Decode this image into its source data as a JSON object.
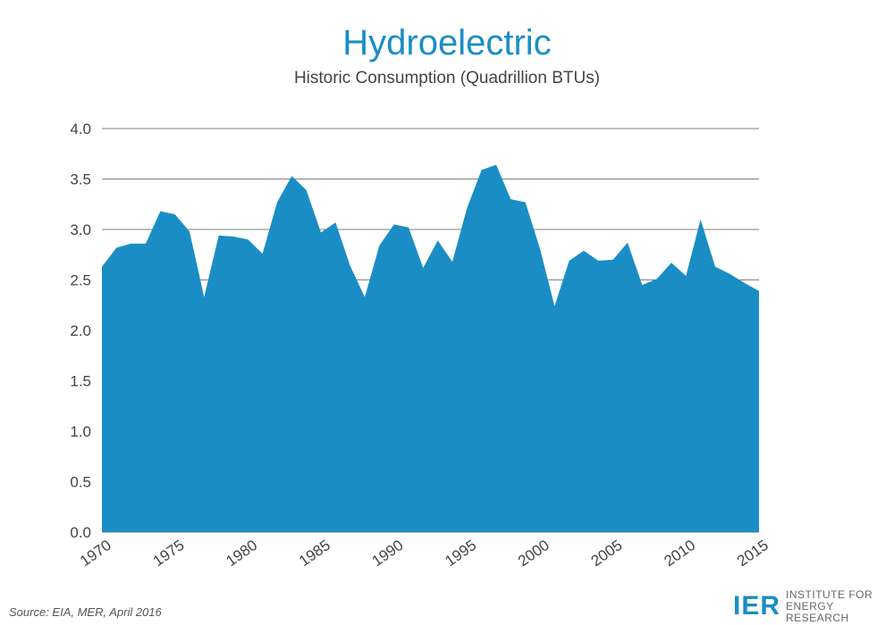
{
  "header": {
    "title": "Hydroelectric",
    "subtitle": "Historic Consumption (Quadrillion BTUs)"
  },
  "footer": {
    "source": "Source: EIA, MER, April 2016",
    "logo_mark": "IER",
    "logo_line1": "INSTITUTE FOR",
    "logo_line2": "ENERGY RESEARCH"
  },
  "colors": {
    "fill": "#1a8ec4",
    "grid": "#7f7f7f",
    "title": "#1a8ec4"
  },
  "chart_data": {
    "type": "area",
    "title": "Hydroelectric",
    "subtitle": "Historic Consumption (Quadrillion BTUs)",
    "xlabel": "",
    "ylabel": "",
    "xlim": [
      1970,
      2015
    ],
    "ylim": [
      0,
      4.0
    ],
    "grid": true,
    "x_ticks": [
      "1970",
      "1975",
      "1980",
      "1985",
      "1990",
      "1995",
      "2000",
      "2005",
      "2010",
      "2015"
    ],
    "y_ticks": [
      "0.0",
      "0.5",
      "1.0",
      "1.5",
      "2.0",
      "2.5",
      "3.0",
      "3.5",
      "4.0"
    ],
    "x": [
      1970,
      1971,
      1972,
      1973,
      1974,
      1975,
      1976,
      1977,
      1978,
      1979,
      1980,
      1981,
      1982,
      1983,
      1984,
      1985,
      1986,
      1987,
      1988,
      1989,
      1990,
      1991,
      1992,
      1993,
      1994,
      1995,
      1996,
      1997,
      1998,
      1999,
      2000,
      2001,
      2002,
      2003,
      2004,
      2005,
      2006,
      2007,
      2008,
      2009,
      2010,
      2011,
      2012,
      2013,
      2014,
      2015
    ],
    "values": [
      2.63,
      2.82,
      2.86,
      2.86,
      3.18,
      3.15,
      2.98,
      2.33,
      2.94,
      2.93,
      2.9,
      2.76,
      3.27,
      3.53,
      3.39,
      2.97,
      3.07,
      2.64,
      2.33,
      2.84,
      3.05,
      3.02,
      2.62,
      2.89,
      2.68,
      3.21,
      3.59,
      3.64,
      3.3,
      3.27,
      2.81,
      2.24,
      2.69,
      2.79,
      2.69,
      2.7,
      2.87,
      2.45,
      2.51,
      2.67,
      2.54,
      3.1,
      2.63,
      2.56,
      2.47,
      2.39
    ]
  }
}
